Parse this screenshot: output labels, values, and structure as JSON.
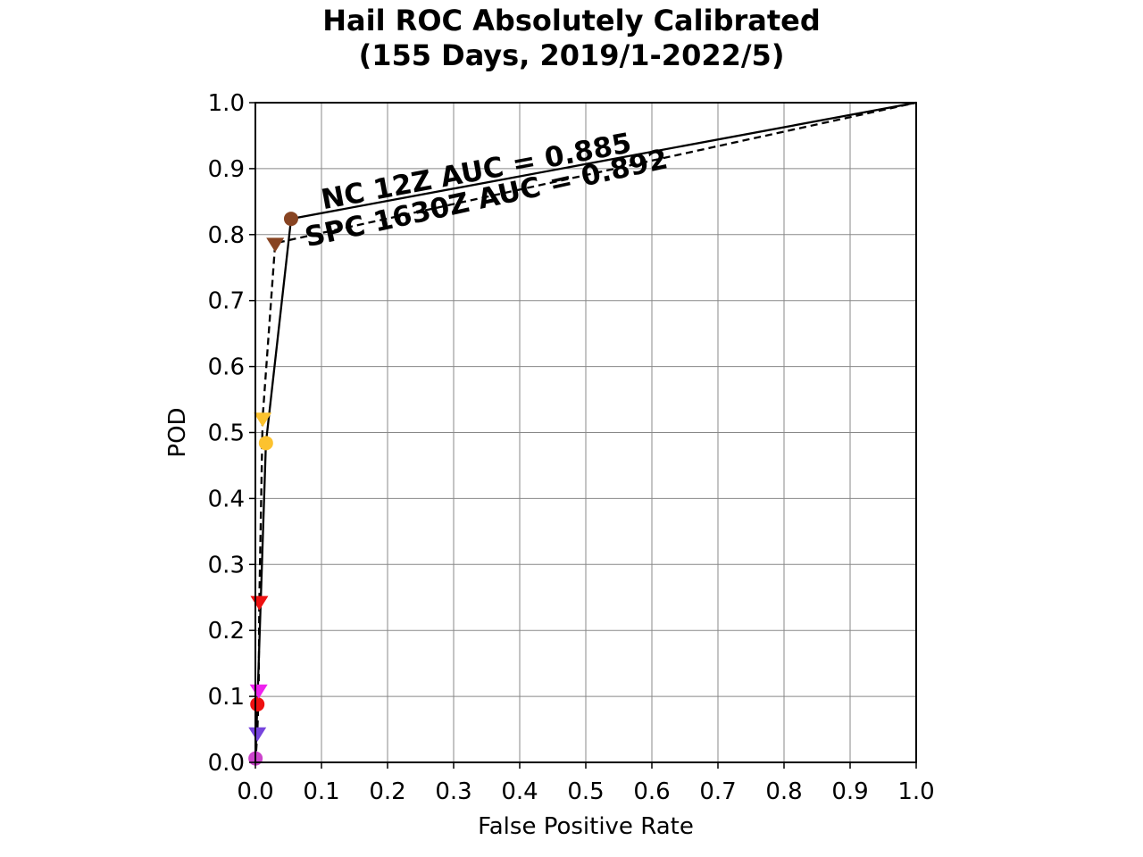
{
  "chart_data": {
    "type": "line",
    "title": "Hail ROC Absolutely Calibrated",
    "subtitle": "(155 Days, 2019/1-2022/5)",
    "xlabel": "False Positive Rate",
    "ylabel": "POD",
    "xlim": [
      0.0,
      1.0
    ],
    "ylim": [
      0.0,
      1.0
    ],
    "xticks": [
      "0.0",
      "0.1",
      "0.2",
      "0.3",
      "0.4",
      "0.5",
      "0.6",
      "0.7",
      "0.8",
      "0.9",
      "1.0"
    ],
    "yticks": [
      "0.0",
      "0.1",
      "0.2",
      "0.3",
      "0.4",
      "0.5",
      "0.6",
      "0.7",
      "0.8",
      "0.9",
      "1.0"
    ],
    "grid": true,
    "series": [
      {
        "name": "NC 12Z",
        "label": "NC 12Z AUC = 0.885",
        "line_style": "solid",
        "marker": "circle",
        "x": [
          0.0,
          0.0002,
          0.003,
          0.016,
          0.054,
          1.0
        ],
        "y": [
          0.0,
          0.006,
          0.088,
          0.484,
          0.824,
          1.0
        ],
        "marker_colors": [
          "#cc44cc",
          "#ee1111",
          "#fcc22e",
          "#884422"
        ]
      },
      {
        "name": "SPC 1630Z",
        "label": "SPC 1630Z AUC = 0.892",
        "line_style": "dashed",
        "marker": "triangle-down",
        "x": [
          0.0,
          0.003,
          0.005,
          0.006,
          0.011,
          0.03,
          1.0
        ],
        "y": [
          0.0,
          0.045,
          0.11,
          0.244,
          0.522,
          0.787,
          1.0
        ],
        "marker_colors": [
          "#7744dd",
          "#ee22ee",
          "#ee1111",
          "#fcc22e",
          "#884422"
        ]
      }
    ]
  }
}
